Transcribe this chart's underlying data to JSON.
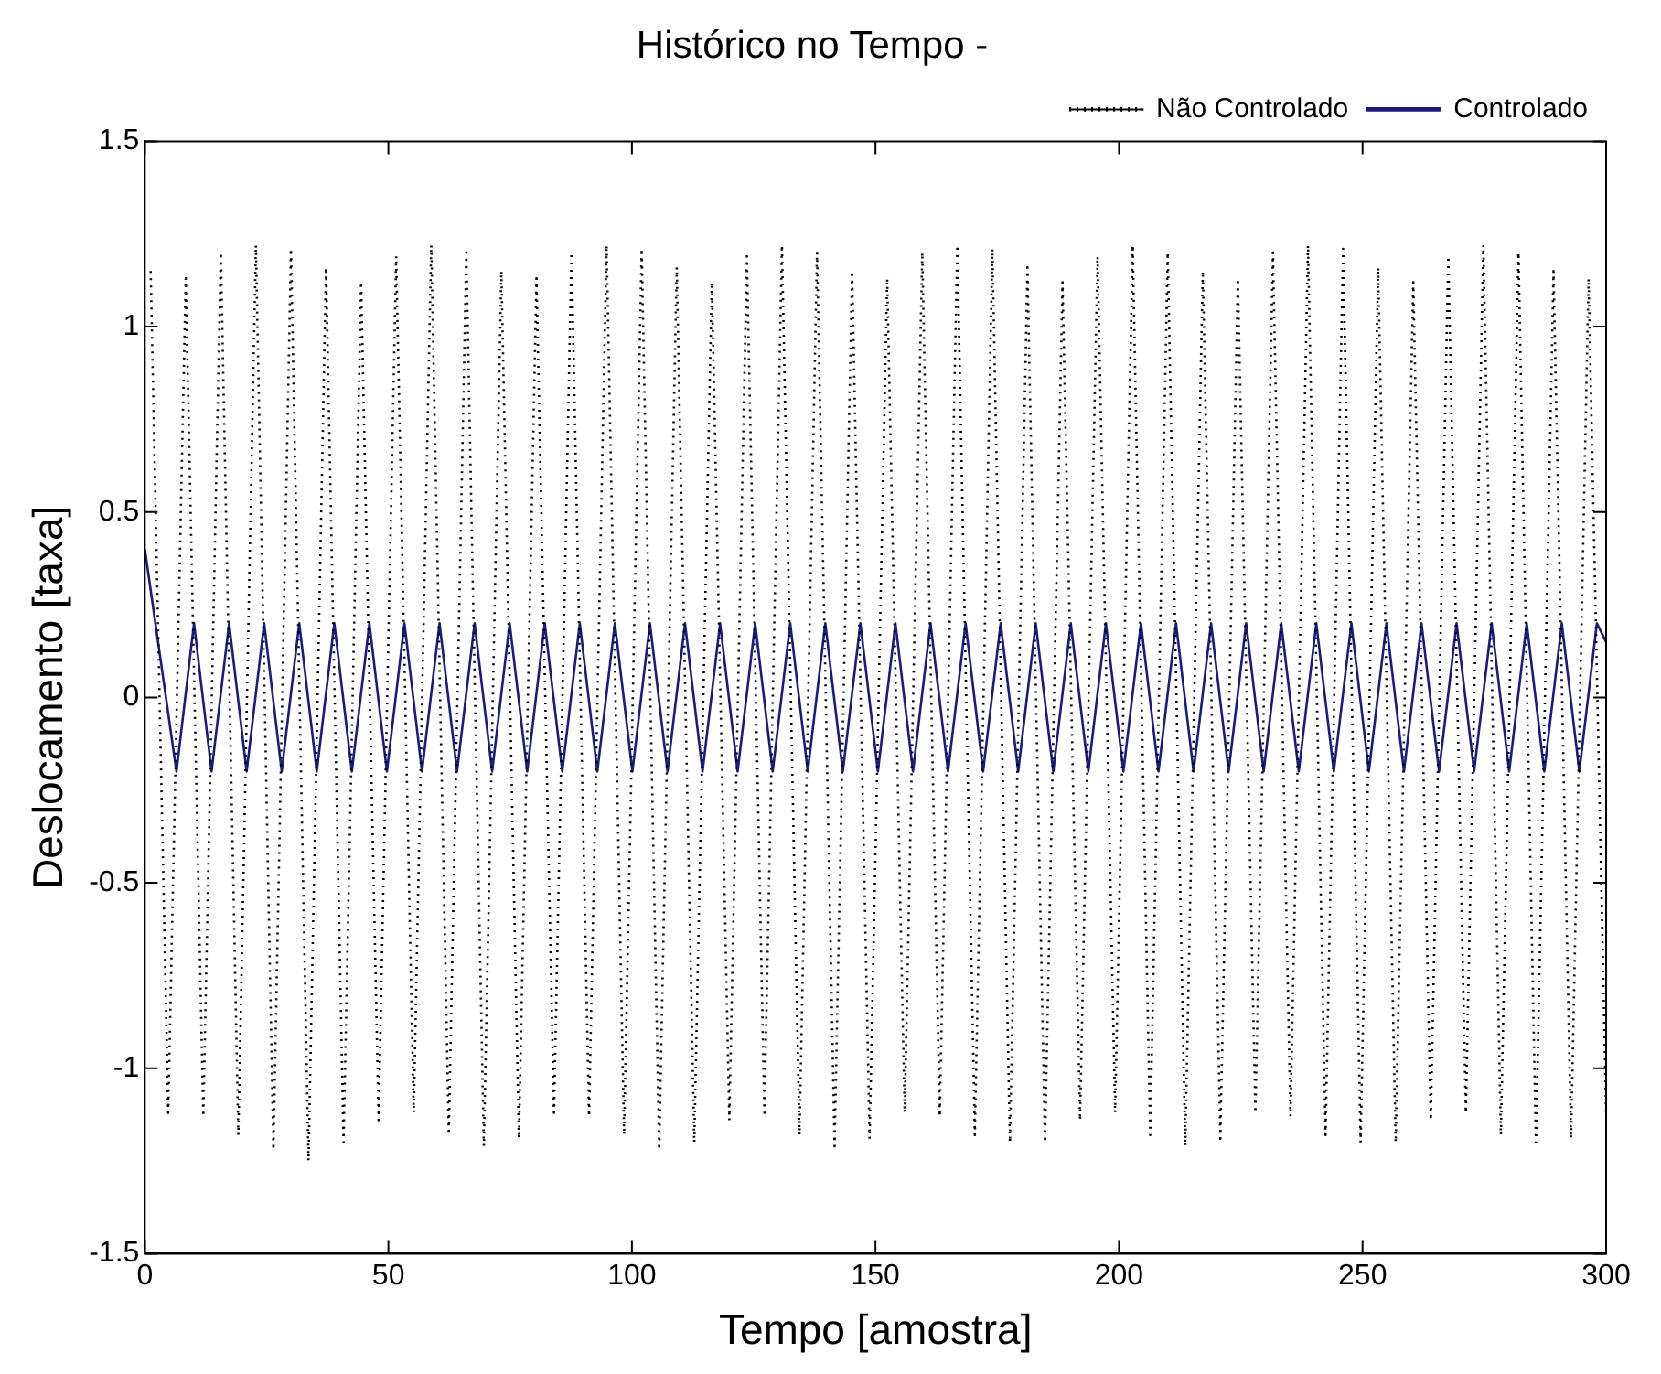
{
  "chart_data": {
    "type": "line",
    "title": "Histórico no Tempo -",
    "xlabel": "Tempo [amostra]",
    "ylabel": "Deslocamento [taxa]",
    "xlim": [
      0,
      300
    ],
    "xticks": [
      0,
      50,
      100,
      150,
      200,
      250,
      300
    ],
    "ylim": [
      -1.5,
      1.5
    ],
    "yticks": [
      -1.5,
      -1,
      -0.5,
      0,
      0.5,
      1,
      1.5
    ],
    "grid": false,
    "legend": "top right",
    "marker": "none",
    "series": [
      {
        "name": "Não Controlado",
        "color": "#000000",
        "line_style": "dotted",
        "x": [
          1.2,
          4.8,
          8.4,
          12,
          15.6,
          19.2,
          22.8,
          26.4,
          30,
          33.6,
          37.2,
          40.8,
          44.4,
          48,
          51.6,
          55.2,
          58.8,
          62.4,
          66,
          69.6,
          73.2,
          76.8,
          80.4,
          84,
          87.6,
          91.2,
          94.8,
          98.4,
          102,
          105.6,
          109.2,
          112.8,
          116.4,
          120,
          123.6,
          127.2,
          130.8,
          134.4,
          138,
          141.6,
          145.2,
          148.8,
          152.4,
          156,
          159.6,
          163.2,
          166.8,
          170.4,
          174,
          177.6,
          181.2,
          184.8,
          188.4,
          192,
          195.6,
          199.2,
          202.8,
          206.4,
          210,
          213.6,
          217.2,
          220.8,
          224.4,
          228,
          231.6,
          235.2,
          238.8,
          242.4,
          246,
          249.6,
          253.2,
          256.8,
          260.4,
          264,
          267.6,
          271.2,
          274.8,
          278.4,
          282,
          285.6,
          289.2,
          292.8,
          296.4,
          300
        ],
        "values": [
          1.15,
          -1.12,
          1.13,
          -1.13,
          1.2,
          -1.18,
          1.22,
          -1.22,
          1.21,
          -1.25,
          1.16,
          -1.2,
          1.12,
          -1.14,
          1.19,
          -1.12,
          1.22,
          -1.18,
          1.2,
          -1.21,
          1.15,
          -1.19,
          1.13,
          -1.12,
          1.2,
          -1.13,
          1.22,
          -1.18,
          1.21,
          -1.22,
          1.16,
          -1.2,
          1.12,
          -1.14,
          1.19,
          -1.12,
          1.22,
          -1.18,
          1.2,
          -1.21,
          1.15,
          -1.19,
          1.13,
          -1.12,
          1.2,
          -1.13,
          1.22,
          -1.18,
          1.21,
          -1.2,
          1.16,
          -1.2,
          1.12,
          -1.14,
          1.19,
          -1.12,
          1.22,
          -1.18,
          1.2,
          -1.21,
          1.15,
          -1.19,
          1.13,
          -1.12,
          1.2,
          -1.13,
          1.22,
          -1.18,
          1.21,
          -1.2,
          1.16,
          -1.2,
          1.12,
          -1.14,
          1.19,
          -1.12,
          1.22,
          -1.18,
          1.2,
          -1.21,
          1.15,
          -1.19,
          1.13,
          -1.12
        ]
      },
      {
        "name": "Controlado",
        "color": "#1a1a80",
        "line_style": "solid",
        "x": [
          0,
          6.5,
          10.1,
          13.7,
          17.3,
          20.9,
          24.5,
          28.1,
          31.7,
          35.3,
          38.9,
          42.5,
          46.1,
          49.7,
          53.3,
          56.9,
          60.5,
          64.1,
          67.7,
          71.3,
          74.9,
          78.5,
          82.1,
          85.7,
          89.3,
          92.9,
          96.5,
          100.1,
          103.7,
          107.3,
          110.9,
          114.5,
          118.1,
          121.7,
          125.3,
          128.9,
          132.5,
          136.1,
          139.7,
          143.3,
          146.9,
          150.5,
          154.1,
          157.7,
          161.3,
          164.9,
          168.5,
          172.1,
          175.7,
          179.3,
          182.9,
          186.5,
          190.1,
          193.7,
          197.3,
          200.9,
          204.5,
          208.1,
          211.7,
          215.3,
          218.9,
          222.5,
          226.1,
          229.7,
          233.3,
          236.9,
          240.5,
          244.1,
          247.7,
          251.3,
          254.9,
          258.5,
          262.1,
          265.7,
          269.3,
          272.9,
          276.5,
          280.1,
          283.7,
          287.3,
          290.9,
          294.5,
          298.1,
          300
        ],
        "values": [
          0.4,
          -0.2,
          0.2,
          -0.2,
          0.2,
          -0.2,
          0.2,
          -0.2,
          0.2,
          -0.2,
          0.2,
          -0.2,
          0.2,
          -0.2,
          0.2,
          -0.2,
          0.2,
          -0.2,
          0.2,
          -0.2,
          0.2,
          -0.2,
          0.2,
          -0.2,
          0.2,
          -0.2,
          0.2,
          -0.2,
          0.2,
          -0.2,
          0.2,
          -0.2,
          0.2,
          -0.2,
          0.2,
          -0.2,
          0.2,
          -0.2,
          0.2,
          -0.2,
          0.2,
          -0.2,
          0.2,
          -0.2,
          0.2,
          -0.2,
          0.2,
          -0.2,
          0.2,
          -0.2,
          0.2,
          -0.2,
          0.2,
          -0.2,
          0.2,
          -0.2,
          0.2,
          -0.2,
          0.2,
          -0.2,
          0.2,
          -0.2,
          0.2,
          -0.2,
          0.2,
          -0.2,
          0.2,
          -0.2,
          0.2,
          -0.2,
          0.2,
          -0.2,
          0.2,
          -0.2,
          0.2,
          -0.2,
          0.2,
          -0.2,
          0.2,
          -0.2,
          0.2,
          -0.2,
          0.2,
          0.15
        ]
      }
    ]
  }
}
